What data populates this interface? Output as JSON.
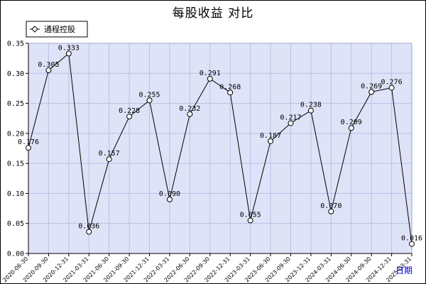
{
  "chart_data": {
    "type": "line",
    "title": "每股收益  对比",
    "xlabel": "日期",
    "ylabel": "",
    "ylim": [
      0,
      0.35
    ],
    "yticks": [
      "0.00",
      "0.05",
      "0.10",
      "0.15",
      "0.20",
      "0.25",
      "0.30",
      "0.35"
    ],
    "grid": true,
    "legend_position": "top-left",
    "categories": [
      "2020-06-30",
      "2020-09-30",
      "2020-12-31",
      "2021-03-31",
      "2021-06-30",
      "2021-09-30",
      "2021-12-31",
      "2022-03-31",
      "2022-06-30",
      "2022-09-30",
      "2022-12-31",
      "2023-03-31",
      "2023-06-30",
      "2023-09-30",
      "2023-12-31",
      "2024-03-31",
      "2024-06-30",
      "2024-09-30",
      "2024-12-31",
      "2025-03-31"
    ],
    "series": [
      {
        "name": "通程控股",
        "values": [
          0.176,
          0.305,
          0.333,
          0.036,
          0.157,
          0.228,
          0.255,
          0.09,
          0.232,
          0.291,
          0.268,
          0.055,
          0.187,
          0.217,
          0.238,
          0.07,
          0.209,
          0.269,
          0.276,
          0.016
        ],
        "labels": [
          "0.176",
          "0.305",
          "0.333",
          "0.036",
          "0.157",
          "0.228",
          "0.255",
          "0.090",
          "0.232",
          "0.291",
          "0.268",
          "0.055",
          "0.187",
          "0.217",
          "0.238",
          "0.070",
          "0.209",
          "0.269",
          "0.276",
          "0.016"
        ]
      }
    ],
    "colors": {
      "plot_background": "#dfe3f7",
      "grid": "#b9c0e6",
      "line": "#000000",
      "marker_fill": "#ffffff",
      "axis_label": "#0000cc"
    }
  }
}
